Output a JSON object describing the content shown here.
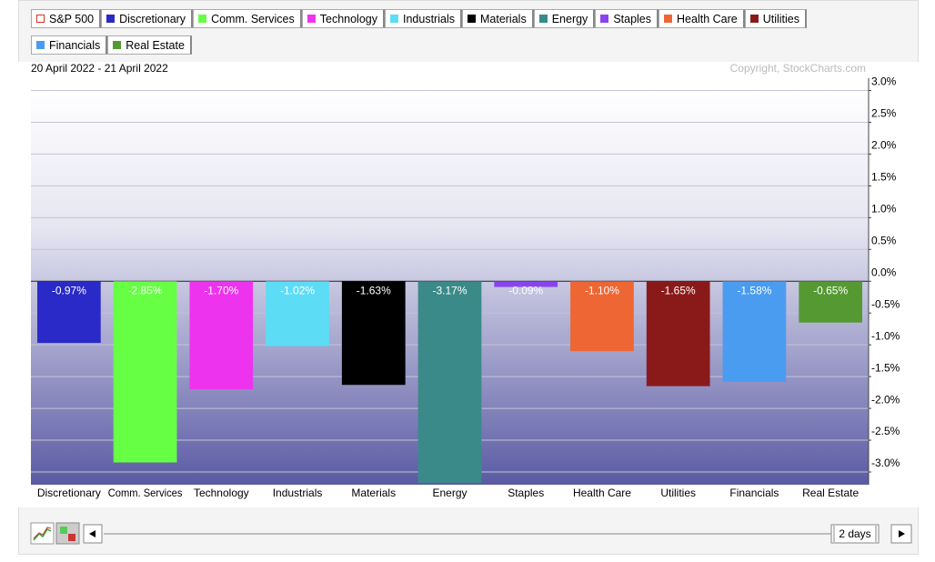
{
  "chart_data": {
    "type": "bar",
    "subtitle": "20 April 2022 - 21 April 2022",
    "annotation": "Copyright, StockCharts.com",
    "legend": [
      {
        "name": "S&P 500",
        "color": "#e03020",
        "hollow": true
      },
      {
        "name": "Discretionary",
        "color": "#2a2ac8"
      },
      {
        "name": "Comm. Services",
        "color": "#66ff44"
      },
      {
        "name": "Technology",
        "color": "#ee33ee"
      },
      {
        "name": "Industrials",
        "color": "#5ddcf6"
      },
      {
        "name": "Materials",
        "color": "#000000"
      },
      {
        "name": "Energy",
        "color": "#3a8a8a"
      },
      {
        "name": "Staples",
        "color": "#8844ee"
      },
      {
        "name": "Health Care",
        "color": "#ee6633"
      },
      {
        "name": "Utilities",
        "color": "#8a1a1a"
      },
      {
        "name": "Financials",
        "color": "#4a9cf0"
      },
      {
        "name": "Real Estate",
        "color": "#559933"
      }
    ],
    "categories": [
      "Discretionary",
      "Comm. Services",
      "Technology",
      "Industrials",
      "Materials",
      "Energy",
      "Staples",
      "Health Care",
      "Utilities",
      "Financials",
      "Real Estate"
    ],
    "values": [
      -0.97,
      -2.85,
      -1.7,
      -1.02,
      -1.63,
      -3.17,
      -0.09,
      -1.1,
      -1.65,
      -1.58,
      -0.65
    ],
    "value_labels": [
      "-0.97%",
      "-2.85%",
      "-1.70%",
      "-1.02%",
      "-1.63%",
      "-3.17%",
      "-0.09%",
      "-1.10%",
      "-1.65%",
      "-1.58%",
      "-0.65%"
    ],
    "colors": [
      "#2a2ac8",
      "#66ff44",
      "#ee33ee",
      "#5ddcf6",
      "#000000",
      "#3a8a8a",
      "#8844ee",
      "#ee6633",
      "#8a1a1a",
      "#4a9cf0",
      "#559933"
    ],
    "ylim": [
      -3.2,
      3.05
    ],
    "yticks": [
      {
        "value": 3,
        "label": "3.0%"
      },
      {
        "value": 2.5,
        "label": "2.5%"
      },
      {
        "value": 2,
        "label": "2.0%"
      },
      {
        "value": 1.5,
        "label": "1.5%"
      },
      {
        "value": 1,
        "label": "1.0%"
      },
      {
        "value": 0.5,
        "label": "0.5%"
      },
      {
        "value": 0,
        "label": "0.0%"
      },
      {
        "value": -0.5,
        "label": "-0.5%"
      },
      {
        "value": -1,
        "label": "-1.0%"
      },
      {
        "value": -1.5,
        "label": "-1.5%"
      },
      {
        "value": -2,
        "label": "-2.0%"
      },
      {
        "value": -2.5,
        "label": "-2.5%"
      },
      {
        "value": -3,
        "label": "-3.0%"
      }
    ],
    "grid": true,
    "period": "2 days"
  }
}
